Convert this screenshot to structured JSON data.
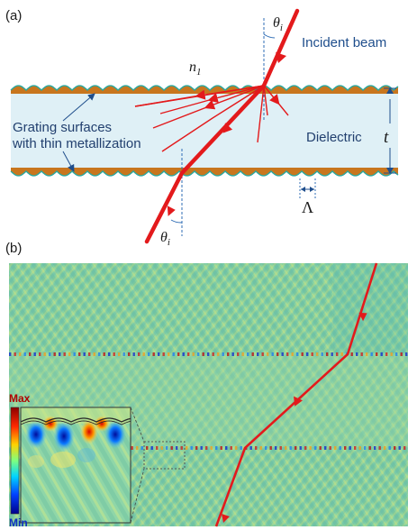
{
  "panel_a": {
    "label": "(a)",
    "theta_top": "θ",
    "theta_top_sub": "i",
    "theta_bottom": "θ",
    "theta_bottom_sub": "i",
    "incident_beam": "Incident beam",
    "n1": "n",
    "n1_sub": "1",
    "grating_line1": "Grating surfaces",
    "grating_line2": "with thin metallization",
    "dielectric": "Dielectric",
    "thickness": "t",
    "period": "Λ",
    "colors": {
      "slab": "#dff0f6",
      "metal": "#c8761e",
      "edge": "#2aa8a0",
      "beam": "#e31a1c",
      "dashed": "#2f6db5"
    }
  },
  "panel_b": {
    "label": "(b)",
    "max_label": "Max",
    "min_label": "Min",
    "colormap": "jet",
    "background_color": "#7fd0a0"
  }
}
